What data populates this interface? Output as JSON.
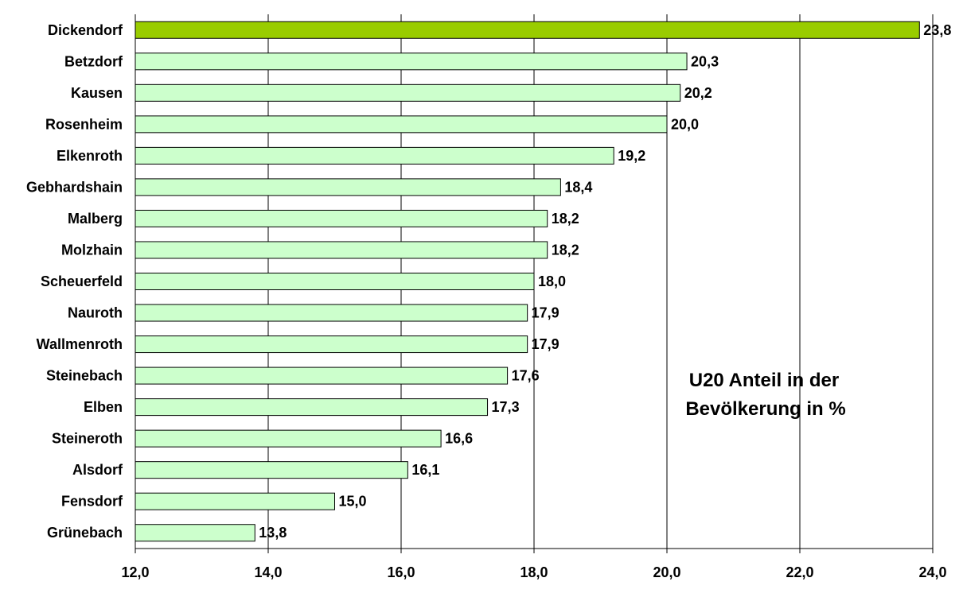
{
  "chart_data": {
    "type": "bar",
    "orientation": "horizontal",
    "title": "",
    "annotation": [
      "U20 Anteil in der",
      "Bevölkerung in %"
    ],
    "xlim": [
      12.0,
      24.0
    ],
    "xticks": [
      "12,0",
      "14,0",
      "16,0",
      "18,0",
      "20,0",
      "22,0",
      "24,0"
    ],
    "xtick_values": [
      12,
      14,
      16,
      18,
      20,
      22,
      24
    ],
    "grid": "vertical",
    "categories": [
      "Dickendorf",
      "Betzdorf",
      "Kausen",
      "Rosenheim",
      "Elkenroth",
      "Gebhardshain",
      "Malberg",
      "Molzhain",
      "Scheuerfeld",
      "Nauroth",
      "Wallmenroth",
      "Steinebach",
      "Elben",
      "Steineroth",
      "Alsdorf",
      "Fensdorf",
      "Grünebach"
    ],
    "values": [
      23.8,
      20.3,
      20.2,
      20.0,
      19.2,
      18.4,
      18.2,
      18.2,
      18.0,
      17.9,
      17.9,
      17.6,
      17.3,
      16.6,
      16.1,
      15.0,
      13.8
    ],
    "value_labels": [
      "23,8",
      "20,3",
      "20,2",
      "20,0",
      "19,2",
      "18,4",
      "18,2",
      "18,2",
      "18,0",
      "17,9",
      "17,9",
      "17,6",
      "17,3",
      "16,6",
      "16,1",
      "15,0",
      "13,8"
    ],
    "colors": {
      "highlight": "#99cc00",
      "default": "#ccffcc",
      "border": "#000000",
      "grid": "#000000"
    },
    "highlighted_category": "Dickendorf"
  }
}
